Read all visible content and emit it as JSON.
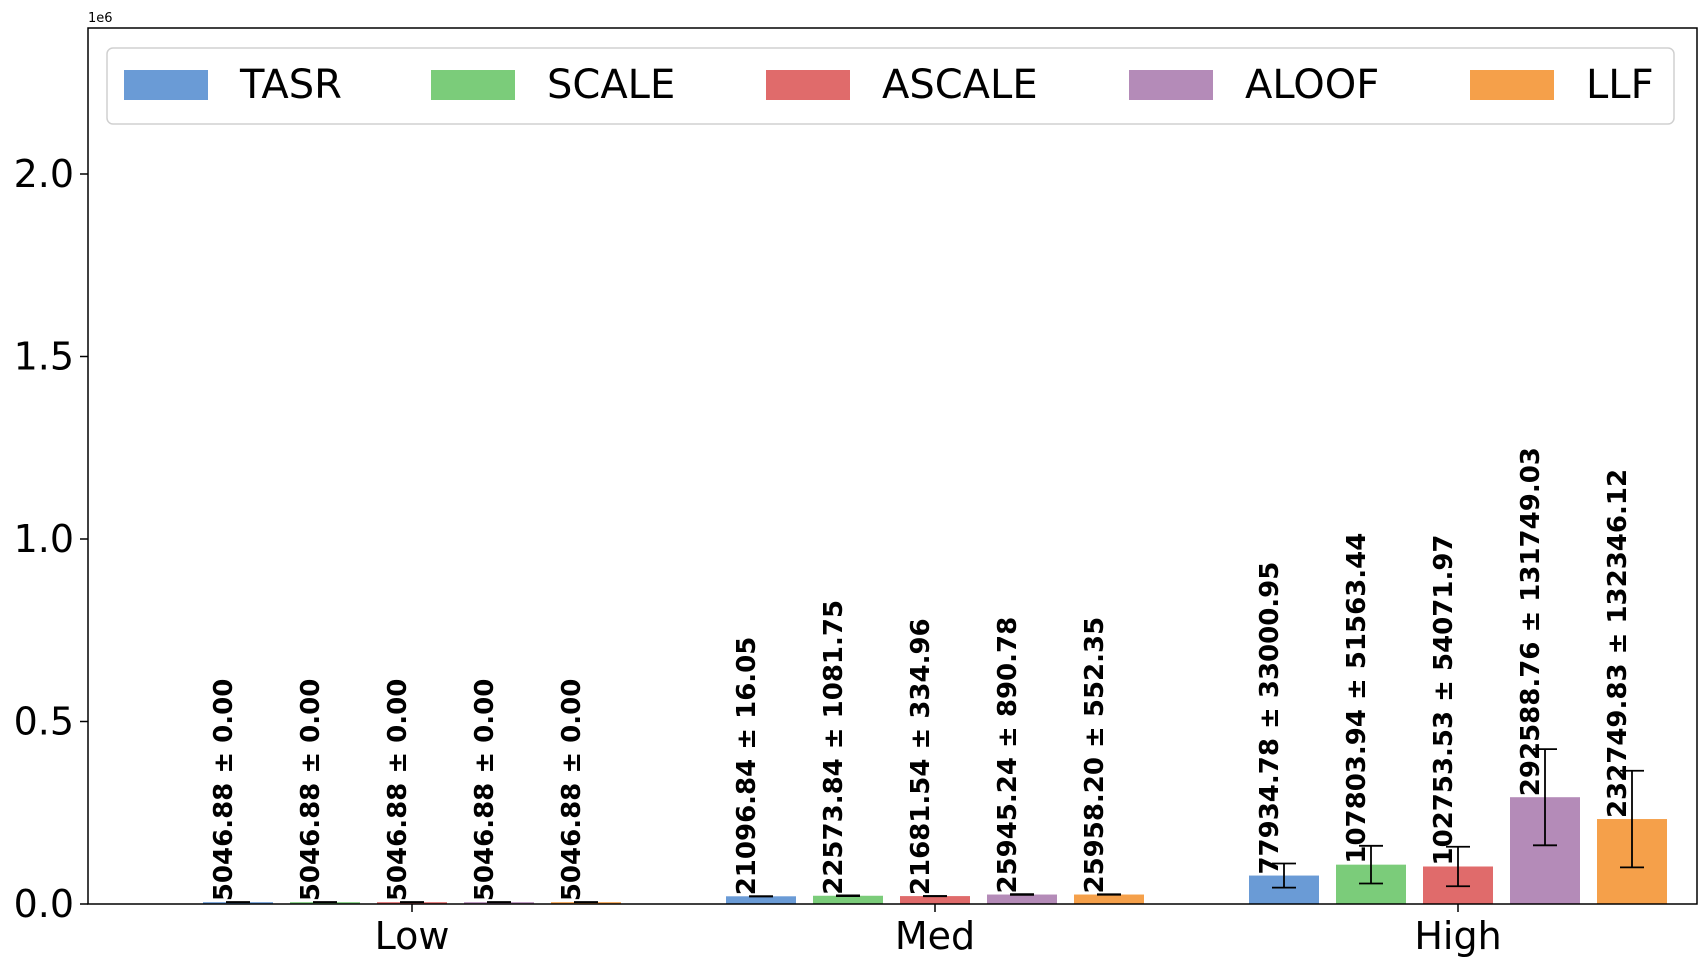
{
  "chart_data": {
    "type": "bar",
    "categories": [
      "Low",
      "Med",
      "High"
    ],
    "series": [
      {
        "name": "TASR",
        "color": "#6a9bd6",
        "values": [
          5046.88,
          21096.84,
          77934.78
        ],
        "errors": [
          0.0,
          16.05,
          33000.95
        ],
        "labels": [
          "5046.88 ± 0.00",
          "21096.84 ± 16.05",
          "77934.78 ± 33000.95"
        ]
      },
      {
        "name": "SCALE",
        "color": "#7bcc7a",
        "values": [
          5046.88,
          22573.84,
          107803.94
        ],
        "errors": [
          0.0,
          1081.75,
          51563.44
        ],
        "labels": [
          "5046.88 ± 0.00",
          "22573.84 ± 1081.75",
          "107803.94 ± 51563.44"
        ]
      },
      {
        "name": "ASCALE",
        "color": "#e06b6b",
        "values": [
          5046.88,
          21681.54,
          102753.53
        ],
        "errors": [
          0.0,
          334.96,
          54071.97
        ],
        "labels": [
          "5046.88 ± 0.00",
          "21681.54 ± 334.96",
          "102753.53 ± 54071.97"
        ]
      },
      {
        "name": "ALOOF",
        "color": "#b48bb8",
        "values": [
          5046.88,
          25945.24,
          292588.76
        ],
        "errors": [
          0.0,
          890.78,
          131749.03
        ],
        "labels": [
          "5046.88 ± 0.00",
          "25945.24 ± 890.78",
          "292588.76 ± 131749.03"
        ]
      },
      {
        "name": "LLF",
        "color": "#f5a04a",
        "values": [
          5046.88,
          25958.2,
          232749.83
        ],
        "errors": [
          0.0,
          552.35,
          132346.12
        ],
        "labels": [
          "5046.88 ± 0.00",
          "25958.20 ± 552.35",
          "232749.83 ± 132346.12"
        ]
      }
    ],
    "y_offset_label": "1e6",
    "ylim": [
      0,
      2400000
    ],
    "yticks": [
      0,
      500000,
      1000000,
      1500000,
      2000000
    ],
    "ytick_labels": [
      "0.0",
      "0.5",
      "1.0",
      "1.5",
      "2.0"
    ],
    "legend": "top, single row",
    "grid": false
  }
}
